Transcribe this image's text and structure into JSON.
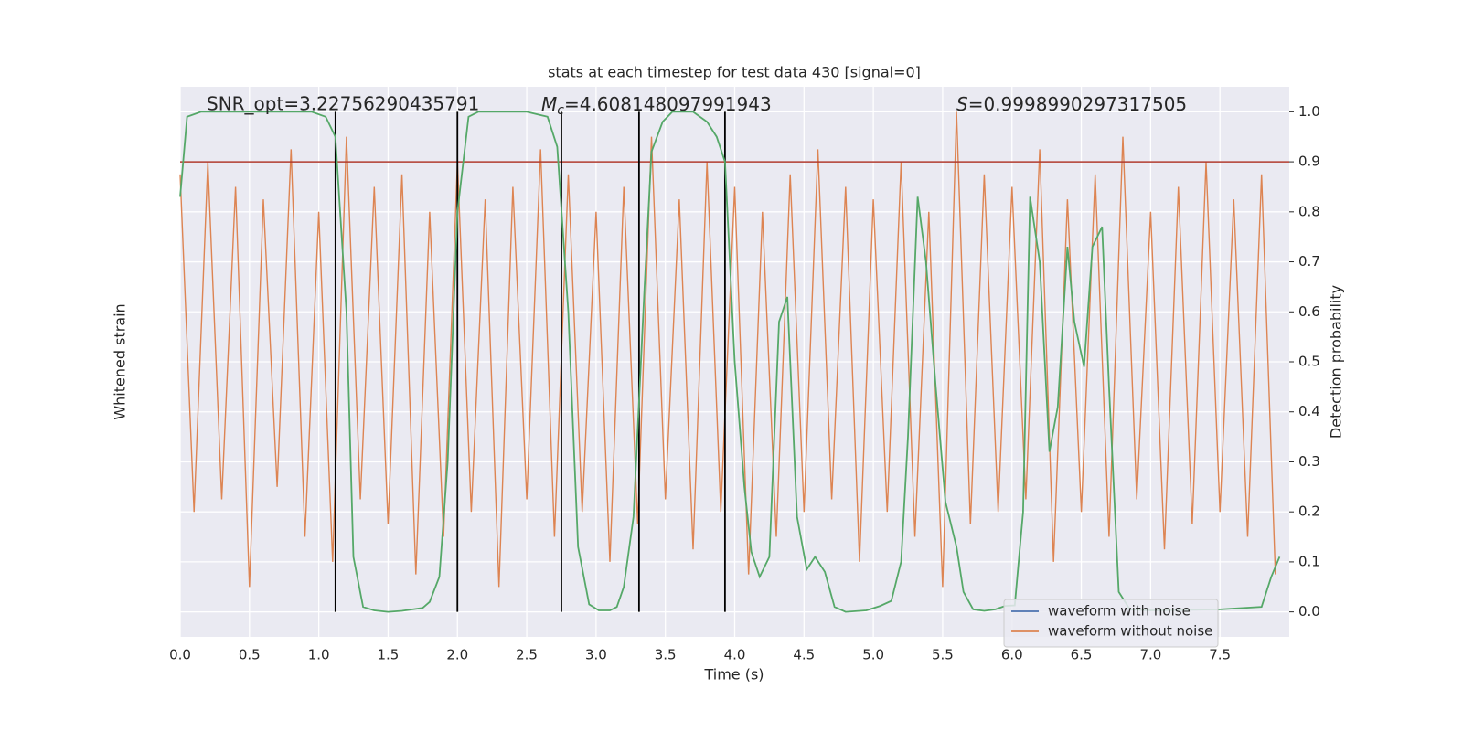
{
  "chart_data": {
    "type": "line",
    "title": "stats at each timestep for test data 430 [signal=0]",
    "xlabel": "Time (s)",
    "ylabel": "Whitened strain",
    "y2label": "Detection probability",
    "xlim": [
      0,
      8
    ],
    "xticks": [
      {
        "value": 0,
        "label": "0.0"
      },
      0.5,
      {
        "value": 1,
        "label": "1.0"
      },
      1.5,
      {
        "value": 2,
        "label": "2.0"
      },
      2.5,
      {
        "value": 3,
        "label": "3.0"
      },
      3.5,
      {
        "value": 4,
        "label": "4.0"
      },
      4.5,
      {
        "value": 5,
        "label": "5.0"
      },
      5.5,
      {
        "value": 6,
        "label": "6.0"
      },
      6.5,
      {
        "value": 7,
        "label": "7.0"
      },
      7.5
    ],
    "ylim": [
      -1.1,
      1.1
    ],
    "y2lim": [
      -0.05,
      1.05
    ],
    "y2ticks": [
      {
        "value": 0,
        "label": "0.0"
      },
      0.1,
      0.2,
      0.3,
      0.4,
      0.5,
      0.6,
      0.7,
      0.8,
      0.9,
      {
        "value": 1,
        "label": "1.0"
      }
    ],
    "grid": true,
    "legend": "lower right",
    "series": [
      {
        "name": "waveform with noise",
        "color": "#4c72b0",
        "x": [],
        "values": []
      },
      {
        "name": "waveform without noise",
        "color": "#dd8452",
        "x": [
          0.0,
          0.1,
          0.2,
          0.3,
          0.4,
          0.5,
          0.6,
          0.7,
          0.8,
          0.9,
          1.0,
          1.1,
          1.2,
          1.3,
          1.4,
          1.5,
          1.6,
          1.7,
          1.8,
          1.9,
          2.0,
          2.1,
          2.2,
          2.3,
          2.4,
          2.5,
          2.6,
          2.7,
          2.8,
          2.9,
          3.0,
          3.1,
          3.2,
          3.3,
          3.4,
          3.5,
          3.6,
          3.7,
          3.8,
          3.9,
          4.0,
          4.1,
          4.2,
          4.3,
          4.4,
          4.5,
          4.6,
          4.7,
          4.8,
          4.9,
          5.0,
          5.1,
          5.2,
          5.3,
          5.4,
          5.5,
          5.6,
          5.7,
          5.8,
          5.9,
          6.0,
          6.1,
          6.2,
          6.3,
          6.4,
          6.5,
          6.6,
          6.7,
          6.8,
          6.9,
          7.0,
          7.1,
          7.2,
          7.3,
          7.4,
          7.5,
          7.6,
          7.7,
          7.8,
          7.9
        ],
        "values": [
          0.75,
          -0.6,
          0.8,
          -0.55,
          0.7,
          -0.9,
          0.65,
          -0.5,
          0.85,
          -0.7,
          0.6,
          -0.8,
          0.9,
          -0.55,
          0.7,
          -0.65,
          0.75,
          -0.85,
          0.6,
          -0.7,
          0.8,
          -0.6,
          0.65,
          -0.9,
          0.7,
          -0.55,
          0.85,
          -0.7,
          0.75,
          -0.6,
          0.6,
          -0.8,
          0.7,
          -0.65,
          0.9,
          -0.55,
          0.65,
          -0.75,
          0.8,
          -0.6,
          0.7,
          -0.85,
          0.6,
          -0.7,
          0.75,
          -0.6,
          0.85,
          -0.55,
          0.7,
          -0.8,
          0.65,
          -0.6,
          0.8,
          -0.7,
          0.6,
          -0.9,
          1.0,
          -0.65,
          0.75,
          -0.6,
          0.7,
          -0.55,
          0.85,
          -0.8,
          0.65,
          -0.6,
          0.75,
          -0.7,
          0.9,
          -0.55,
          0.6,
          -0.75,
          0.7,
          -0.65,
          0.8,
          -0.6,
          0.65,
          -0.7,
          0.75,
          -0.85
        ]
      },
      {
        "color": "#55a868",
        "axis": "y2",
        "x": [
          0,
          0.05,
          0.15,
          0.95,
          1.05,
          1.12,
          1.2,
          1.25,
          1.32,
          1.4,
          1.5,
          1.6,
          1.75,
          1.8,
          1.87,
          1.93,
          2.0,
          2.08,
          2.15,
          2.5,
          2.65,
          2.72,
          2.8,
          2.87,
          2.95,
          3.02,
          3.1,
          3.15,
          3.2,
          3.27,
          3.35,
          3.4,
          3.48,
          3.55,
          3.7,
          3.8,
          3.87,
          3.93,
          4.0,
          4.07,
          4.12,
          4.18,
          4.25,
          4.32,
          4.38,
          4.45,
          4.52,
          4.58,
          4.65,
          4.72,
          4.8,
          4.95,
          5.05,
          5.13,
          5.2,
          5.25,
          5.32,
          5.38,
          5.45,
          5.52,
          5.6,
          5.65,
          5.72,
          5.8,
          5.88,
          5.95,
          6.02,
          6.08,
          6.13,
          6.2,
          6.27,
          6.33,
          6.4,
          6.45,
          6.52,
          6.58,
          6.65,
          6.7,
          6.77,
          6.85,
          7.0,
          7.5,
          7.8,
          7.87,
          7.93
        ],
        "values": [
          0.83,
          0.99,
          1.0,
          1.0,
          0.99,
          0.95,
          0.6,
          0.11,
          0.01,
          0.003,
          0.0,
          0.002,
          0.008,
          0.02,
          0.07,
          0.3,
          0.8,
          0.99,
          1.0,
          1.0,
          0.99,
          0.93,
          0.6,
          0.13,
          0.015,
          0.003,
          0.003,
          0.01,
          0.05,
          0.19,
          0.65,
          0.92,
          0.98,
          1.0,
          1.0,
          0.98,
          0.95,
          0.9,
          0.5,
          0.25,
          0.12,
          0.07,
          0.11,
          0.58,
          0.63,
          0.19,
          0.085,
          0.11,
          0.08,
          0.01,
          0.0,
          0.003,
          0.012,
          0.022,
          0.1,
          0.35,
          0.83,
          0.7,
          0.45,
          0.22,
          0.13,
          0.04,
          0.005,
          0.002,
          0.005,
          0.012,
          0.013,
          0.2,
          0.83,
          0.7,
          0.32,
          0.41,
          0.73,
          0.58,
          0.49,
          0.73,
          0.77,
          0.45,
          0.04,
          0.005,
          0.003,
          0.005,
          0.01,
          0.07,
          0.11
        ]
      }
    ],
    "vlines": [
      1.12,
      2.0,
      2.75,
      3.31,
      3.93
    ],
    "vline_color": "#000000",
    "threshold": 0.9,
    "threshold_color": "#b03a2e",
    "annotations": {
      "snr": "SNR_opt=3.22756290435791",
      "mc_symbol": "M",
      "mc_subscript": "c",
      "mc_text": "=4.608148097991943",
      "s_symbol": "S",
      "s_text": "=0.9998990297317505"
    }
  }
}
